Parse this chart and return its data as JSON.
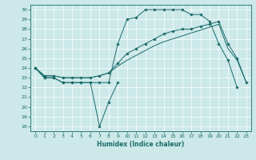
{
  "title": "",
  "xlabel": "Humidex (Indice chaleur)",
  "background_color": "#cce8e8",
  "line_color": "#1a6b6b",
  "xlim": [
    -0.5,
    23.5
  ],
  "ylim": [
    17.5,
    30.5
  ],
  "yticks": [
    18,
    19,
    20,
    21,
    22,
    23,
    24,
    25,
    26,
    27,
    28,
    29,
    30
  ],
  "xticks": [
    0,
    1,
    2,
    3,
    4,
    5,
    6,
    7,
    8,
    9,
    10,
    11,
    12,
    13,
    14,
    15,
    16,
    17,
    18,
    19,
    20,
    21,
    22,
    23
  ],
  "lines": [
    {
      "x": [
        0,
        1,
        2,
        3,
        4,
        5,
        6,
        7,
        8,
        9
      ],
      "y": [
        24,
        23,
        23,
        22.5,
        22.5,
        22.5,
        22.5,
        18,
        20.5,
        22.5
      ],
      "marker": "D",
      "markersize": 1.8,
      "lw": 0.7
    },
    {
      "x": [
        0,
        1,
        2,
        3,
        4,
        5,
        6,
        7,
        8,
        9,
        10,
        11,
        12,
        13,
        14,
        15,
        16,
        17,
        18,
        19,
        20,
        21,
        22
      ],
      "y": [
        24,
        23,
        23,
        22.5,
        22.5,
        22.5,
        22.5,
        22.5,
        22.5,
        26.5,
        29,
        29.2,
        30,
        30,
        30,
        30,
        30,
        29.5,
        29.5,
        28.8,
        26.5,
        24.8,
        22
      ],
      "marker": "D",
      "markersize": 1.8,
      "lw": 0.7
    },
    {
      "x": [
        0,
        1,
        2,
        3,
        4,
        5,
        6,
        7,
        8,
        9,
        10,
        11,
        12,
        13,
        14,
        15,
        16,
        17,
        18,
        19,
        20,
        21,
        22,
        23
      ],
      "y": [
        24,
        23.2,
        23.2,
        23,
        23,
        23,
        23,
        23.2,
        23.5,
        24.5,
        25.5,
        26,
        26.5,
        27,
        27.5,
        27.8,
        28,
        28,
        28.3,
        28.5,
        28.8,
        26.5,
        25,
        22.5
      ],
      "marker": "D",
      "markersize": 1.8,
      "lw": 0.7
    },
    {
      "x": [
        0,
        1,
        2,
        3,
        4,
        5,
        6,
        7,
        8,
        9,
        10,
        11,
        12,
        13,
        14,
        15,
        16,
        17,
        18,
        19,
        20,
        21,
        22,
        23
      ],
      "y": [
        24,
        23.2,
        23.2,
        23,
        23,
        23,
        23,
        23.2,
        23.5,
        24.2,
        24.8,
        25.3,
        25.8,
        26.3,
        26.7,
        27.0,
        27.3,
        27.6,
        27.9,
        28.2,
        28.5,
        26,
        24.8,
        22.5
      ],
      "marker": null,
      "markersize": 0,
      "lw": 0.7
    }
  ]
}
